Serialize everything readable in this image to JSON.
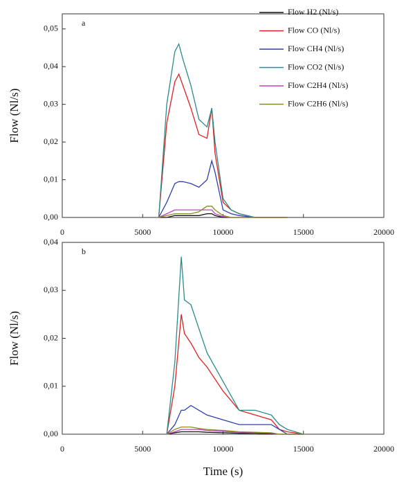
{
  "chart_data": [
    {
      "type": "line",
      "panel_label": "a",
      "y_label": "Flow (Nl/s)",
      "legend": "upper right",
      "x": [
        6000,
        6500,
        7000,
        7250,
        7500,
        8000,
        8500,
        9000,
        9300,
        9500,
        10000,
        10500,
        11000,
        12000,
        13000,
        14000
      ],
      "xlim": [
        0,
        20000
      ],
      "xticks": [
        0,
        5000,
        10000,
        15000,
        20000
      ],
      "ylim": [
        0,
        0.054
      ],
      "yticks": [
        {
          "value": 0,
          "label": "0,00"
        },
        {
          "value": 0.01,
          "label": "0,01"
        },
        {
          "value": 0.02,
          "label": "0,02"
        },
        {
          "value": 0.03,
          "label": "0,03"
        },
        {
          "value": 0.04,
          "label": "0,04"
        },
        {
          "value": 0.05,
          "label": "0,05"
        }
      ],
      "series": [
        {
          "name": "Flow H2 (Nl/s)",
          "color": "#111111",
          "values": [
            0,
            0,
            0.0005,
            0.0005,
            0.0005,
            0.0005,
            0.0005,
            0.001,
            0.001,
            0.0005,
            0,
            0,
            0,
            0,
            0,
            0
          ]
        },
        {
          "name": "Flow CO (Nl/s)",
          "color": "#e02020",
          "values": [
            0,
            0.025,
            0.036,
            0.038,
            0.035,
            0.029,
            0.022,
            0.021,
            0.029,
            0.017,
            0.004,
            0.002,
            0.001,
            0,
            0,
            0
          ]
        },
        {
          "name": "Flow CH4 (Nl/s)",
          "color": "#2b3fb0",
          "values": [
            0,
            0.004,
            0.009,
            0.0095,
            0.0095,
            0.009,
            0.008,
            0.01,
            0.015,
            0.012,
            0.002,
            0.001,
            0.0005,
            0,
            0,
            0
          ]
        },
        {
          "name": "Flow CO2 (Nl/s)",
          "color": "#2a8a8a",
          "values": [
            0,
            0.03,
            0.044,
            0.046,
            0.042,
            0.035,
            0.026,
            0.024,
            0.029,
            0.02,
            0.005,
            0.002,
            0.001,
            0,
            0,
            0
          ]
        },
        {
          "name": "Flow C2H4 (Nl/s)",
          "color": "#c040c0",
          "values": [
            0,
            0.001,
            0.002,
            0.002,
            0.002,
            0.002,
            0.002,
            0.002,
            0.002,
            0.001,
            0.0002,
            0,
            0,
            0,
            0,
            0
          ]
        },
        {
          "name": "Flow C2H6 (Nl/s)",
          "color": "#8a8a20",
          "values": [
            0,
            0.0005,
            0.001,
            0.001,
            0.001,
            0.001,
            0.0015,
            0.003,
            0.003,
            0.002,
            0.0005,
            0,
            0,
            0,
            0,
            0
          ]
        }
      ]
    },
    {
      "type": "line",
      "panel_label": "b",
      "y_label": "Flow (Nl/s)",
      "x_label": "Time (s)",
      "x": [
        6500,
        7000,
        7400,
        7600,
        8000,
        8500,
        9000,
        10000,
        11000,
        12000,
        13000,
        13500,
        14000,
        15000
      ],
      "xlim": [
        0,
        20000
      ],
      "xticks": [
        0,
        5000,
        10000,
        15000,
        20000
      ],
      "ylim": [
        0,
        0.04
      ],
      "yticks": [
        {
          "value": 0,
          "label": "0,00"
        },
        {
          "value": 0.01,
          "label": "0,01"
        },
        {
          "value": 0.02,
          "label": "0,02"
        },
        {
          "value": 0.03,
          "label": "0,03"
        },
        {
          "value": 0.04,
          "label": "0,04"
        }
      ],
      "series": [
        {
          "color": "#111111",
          "values": [
            0,
            0.0003,
            0.0005,
            0.0005,
            0.0005,
            0.0005,
            0.0004,
            0.0003,
            0.0002,
            0.0002,
            0.0001,
            0,
            0,
            0
          ]
        },
        {
          "color": "#e02020",
          "values": [
            0,
            0.01,
            0.025,
            0.021,
            0.019,
            0.016,
            0.014,
            0.009,
            0.005,
            0.004,
            0.003,
            0.001,
            0.0005,
            0
          ]
        },
        {
          "color": "#2b3fb0",
          "values": [
            0,
            0.002,
            0.005,
            0.005,
            0.006,
            0.005,
            0.004,
            0.003,
            0.002,
            0.002,
            0.002,
            0.001,
            0,
            0
          ]
        },
        {
          "color": "#2a8a8a",
          "values": [
            0,
            0.015,
            0.037,
            0.028,
            0.027,
            0.022,
            0.017,
            0.011,
            0.005,
            0.005,
            0.004,
            0.002,
            0.001,
            0
          ]
        },
        {
          "color": "#c040c0",
          "values": [
            0,
            0.0005,
            0.001,
            0.001,
            0.001,
            0.001,
            0.0008,
            0.0006,
            0.0004,
            0.0003,
            0.0002,
            0,
            0,
            0
          ]
        },
        {
          "color": "#8a8a20",
          "values": [
            0,
            0.001,
            0.0015,
            0.0015,
            0.0015,
            0.0012,
            0.001,
            0.0008,
            0.0005,
            0.0004,
            0.0003,
            0,
            0,
            0
          ]
        }
      ]
    }
  ]
}
